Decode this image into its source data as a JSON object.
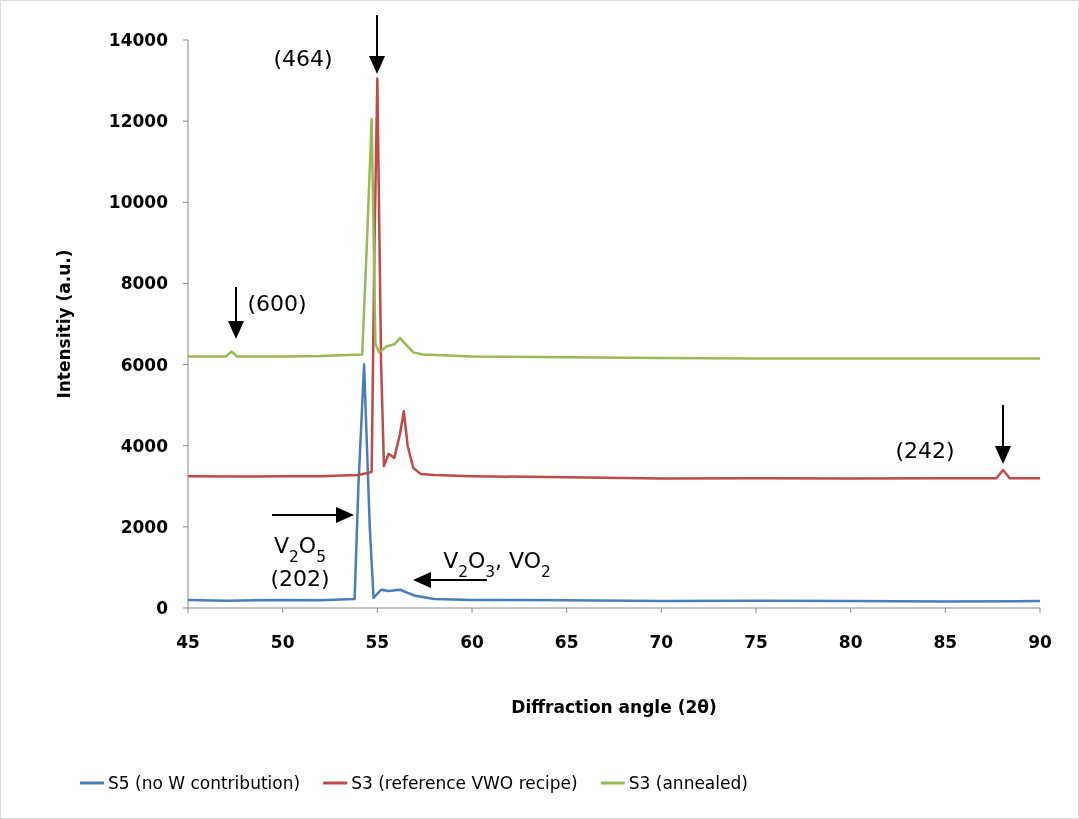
{
  "chart_data": {
    "type": "line",
    "xlabel": "Diffraction angle (2θ)",
    "ylabel": "Intensitiy (a.u.)",
    "xlim": [
      45,
      90
    ],
    "xticks": [
      45,
      50,
      55,
      60,
      65,
      70,
      75,
      80,
      85,
      90
    ],
    "ylim": [
      0,
      14000
    ],
    "yticks": [
      0,
      2000,
      4000,
      6000,
      8000,
      10000,
      12000,
      14000
    ],
    "grid": false,
    "legend": "bottom",
    "marker": "none",
    "line_style": "solid",
    "series": [
      {
        "name": "S5 (no W contribution)",
        "color": "#4a7ebb",
        "x": [
          45,
          47,
          50,
          52,
          53.8,
          54.0,
          54.3,
          54.6,
          54.8,
          55.2,
          55.6,
          56.2,
          57,
          58,
          60,
          65,
          70,
          75,
          80,
          85,
          90
        ],
        "values": [
          200,
          180,
          200,
          190,
          220,
          3000,
          6000,
          2000,
          250,
          450,
          420,
          450,
          300,
          220,
          200,
          190,
          170,
          180,
          170,
          160,
          170
        ]
      },
      {
        "name": "S3 (reference  VWO recipe)",
        "color": "#be4b48",
        "x": [
          45,
          48,
          50,
          52,
          54,
          54.7,
          54.85,
          55.0,
          55.2,
          55.35,
          55.6,
          55.9,
          56.2,
          56.4,
          56.6,
          56.9,
          57.3,
          58,
          60,
          65,
          70,
          75,
          80,
          85,
          87.7,
          88.05,
          88.4,
          90
        ],
        "values": [
          3250,
          3240,
          3250,
          3250,
          3280,
          3350,
          9000,
          13050,
          6000,
          3500,
          3800,
          3700,
          4300,
          4850,
          4000,
          3450,
          3300,
          3280,
          3250,
          3220,
          3190,
          3200,
          3190,
          3200,
          3200,
          3400,
          3200,
          3200
        ]
      },
      {
        "name": "S3 (annealed)",
        "color": "#98b954",
        "x": [
          45,
          47,
          47.3,
          47.6,
          50,
          52,
          54.2,
          54.45,
          54.7,
          54.9,
          55.1,
          55.5,
          55.9,
          56.2,
          56.5,
          56.9,
          57.4,
          60,
          65,
          70,
          75,
          80,
          85,
          90
        ],
        "values": [
          6200,
          6200,
          6320,
          6200,
          6200,
          6210,
          6250,
          9000,
          12050,
          6500,
          6300,
          6450,
          6500,
          6650,
          6500,
          6300,
          6250,
          6200,
          6180,
          6160,
          6150,
          6150,
          6150,
          6150
        ]
      }
    ],
    "annotations": [
      "(464)",
      "(600)",
      "(242)",
      "V$_{2}$O$_{5}$",
      "(202)",
      "V$_{2}$O$_{3}$,  VO$_{2}$"
    ]
  }
}
